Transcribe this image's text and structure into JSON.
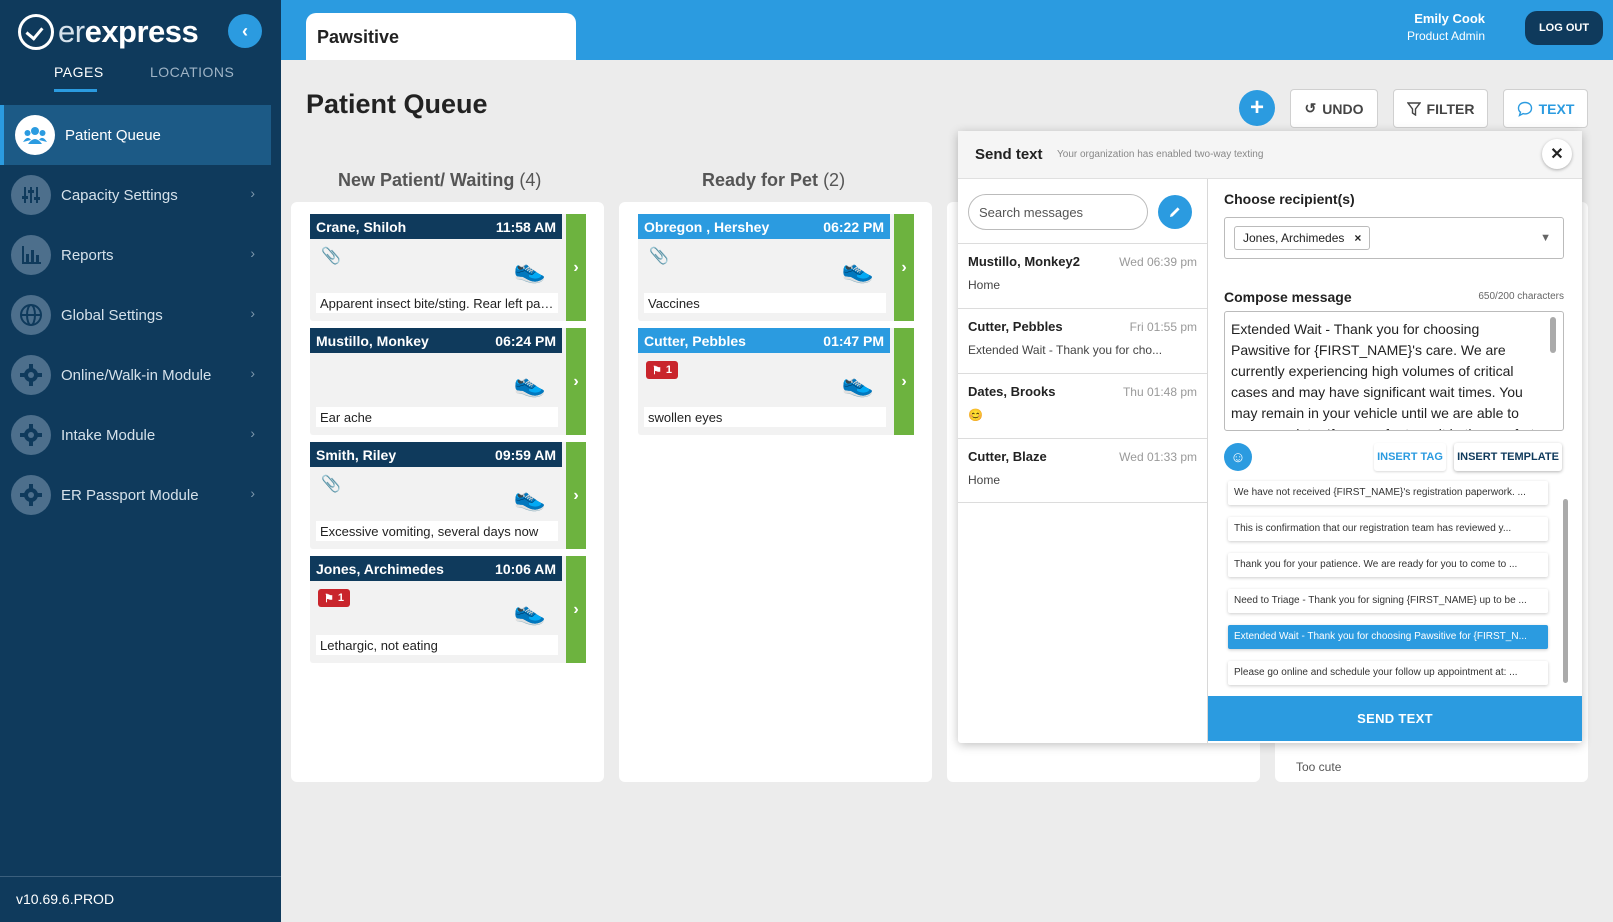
{
  "brand": {
    "er": "er",
    "express": "express"
  },
  "sidebar": {
    "tabs": [
      {
        "label": "PAGES"
      },
      {
        "label": "LOCATIONS"
      }
    ],
    "items": [
      {
        "label": "Patient Queue",
        "icon": "users-icon"
      },
      {
        "label": "Capacity Settings",
        "icon": "sliders-icon"
      },
      {
        "label": "Reports",
        "icon": "bar-chart-icon"
      },
      {
        "label": "Global Settings",
        "icon": "globe-icon"
      },
      {
        "label": "Online/Walk-in Module",
        "icon": "gear-icon"
      },
      {
        "label": "Intake Module",
        "icon": "gear-icon"
      },
      {
        "label": "ER Passport Module",
        "icon": "gear-icon"
      }
    ],
    "version": "v10.69.6.PROD"
  },
  "header": {
    "tab": "Pawsitive",
    "user_name": "Emily Cook",
    "user_role": "Product Admin",
    "logout": "LOG OUT"
  },
  "page": {
    "title": "Patient Queue",
    "undo": "UNDO",
    "filter": "FILTER",
    "text": "TEXT"
  },
  "columns": [
    {
      "title": "New Patient/ Waiting",
      "count": "(4)",
      "cards": [
        {
          "name": "Crane, Shiloh",
          "time": "11:58 AM",
          "note": "Apparent insect bite/sting. Rear left paw ...",
          "attachment": true,
          "flag": ""
        },
        {
          "name": "Mustillo, Monkey",
          "time": "06:24 PM",
          "note": "Ear ache",
          "attachment": false,
          "flag": ""
        },
        {
          "name": "Smith, Riley",
          "time": "09:59 AM",
          "note": "Excessive vomiting, several days now",
          "attachment": true,
          "flag": ""
        },
        {
          "name": "Jones, Archimedes",
          "time": "10:06 AM",
          "note": "Lethargic, not eating",
          "attachment": false,
          "flag": "1"
        }
      ]
    },
    {
      "title": "Ready for Pet",
      "count": "(2)",
      "cards": [
        {
          "name": "Obregon , Hershey",
          "time": "06:22 PM",
          "note": "Vaccines",
          "attachment": true,
          "flag": ""
        },
        {
          "name": "Cutter, Pebbles",
          "time": "01:47 PM",
          "note": "swollen eyes",
          "attachment": false,
          "flag": "1"
        }
      ]
    }
  ],
  "dialog": {
    "title": "Send text",
    "subtitle": "Your organization has enabled two-way texting",
    "search_placeholder": "Search messages",
    "messages": [
      {
        "name": "Mustillo, Monkey2",
        "time": "Wed 06:39 pm",
        "preview": "Home"
      },
      {
        "name": "Cutter, Pebbles",
        "time": "Fri 01:55 pm",
        "preview": "Extended Wait - Thank you for cho..."
      },
      {
        "name": "Dates, Brooks",
        "time": "Thu 01:48 pm",
        "preview": "😊"
      },
      {
        "name": "Cutter, Blaze",
        "time": "Wed 01:33 pm",
        "preview": "Home"
      }
    ],
    "recipients_label": "Choose recipient(s)",
    "recipient": "Jones, Archimedes",
    "compose_label": "Compose message",
    "char_count": "650/200 characters",
    "message": "Extended Wait - Thank you for choosing Pawsitive for {FIRST_NAME}'s care. We are currently experiencing high volumes of critical cases and may have significant wait times. You may remain in your vehicle until we are able to accommodate. If you prefer to wait in the comfort",
    "insert_tag": "INSERT TAG",
    "insert_template": "INSERT TEMPLATE",
    "templates": [
      {
        "text": "We have not received {FIRST_NAME}'s registration paperwork. ..."
      },
      {
        "text": "This is confirmation that our registration team has reviewed y..."
      },
      {
        "text": "Thank you for your patience. We are ready for you to come to ..."
      },
      {
        "text": "Need to Triage - Thank you for signing {FIRST_NAME} up to be ..."
      },
      {
        "text": "Extended Wait - Thank you for choosing Pawsitive for {FIRST_N..."
      },
      {
        "text": "Please go online and schedule your follow up appointment at: ..."
      }
    ],
    "selected_template": 4,
    "send": "SEND TEXT"
  },
  "behind_card_note": "Too cute",
  "colors": {
    "primary": "#2b9be0",
    "navy": "#0f3a5c",
    "green": "#6db33f",
    "flag_red": "#c9252c"
  }
}
